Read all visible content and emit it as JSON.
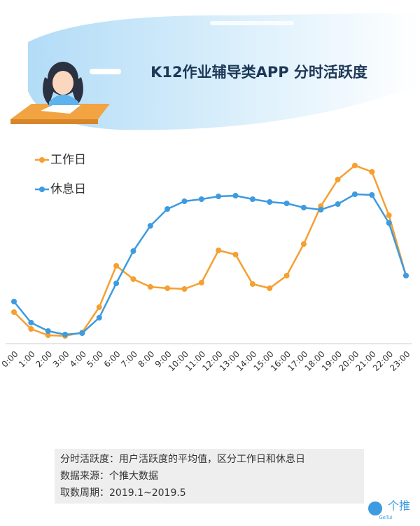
{
  "chart_data": {
    "type": "line",
    "title": "K12作业辅导类APP 分时活跃度",
    "categories": [
      "0:00",
      "1:00",
      "2:00",
      "3:00",
      "4:00",
      "5:00",
      "6:00",
      "7:00",
      "8:00",
      "9:00",
      "10:00",
      "11:00",
      "12:00",
      "13:00",
      "14:00",
      "15:00",
      "16:00",
      "17:00",
      "18:00",
      "19:00",
      "20:00",
      "21:00",
      "22:00",
      "23:00"
    ],
    "series": [
      {
        "name": "工作日",
        "color": "#f5a030",
        "values": [
          45,
          21,
          12,
          11,
          16,
          52,
          111,
          92,
          81,
          79,
          78,
          87,
          133,
          127,
          85,
          79,
          97,
          142,
          196,
          234,
          254,
          245,
          183,
          97
        ]
      },
      {
        "name": "休息日",
        "color": "#3d9be0",
        "values": [
          60,
          30,
          18,
          13,
          15,
          37,
          86,
          132,
          168,
          192,
          203,
          206,
          210,
          211,
          206,
          202,
          200,
          194,
          191,
          199,
          213,
          212,
          172,
          97
        ]
      }
    ],
    "ylim": [
      0,
      270
    ],
    "grid": false
  },
  "notes": [
    "分时活跃度：用户活跃度的平均值，区分工作日和休息日",
    "数据来源：个推大数据",
    "取数周期：2019.1~2019.5"
  ],
  "logo": {
    "text": "个推",
    "sub": "GeTui"
  }
}
